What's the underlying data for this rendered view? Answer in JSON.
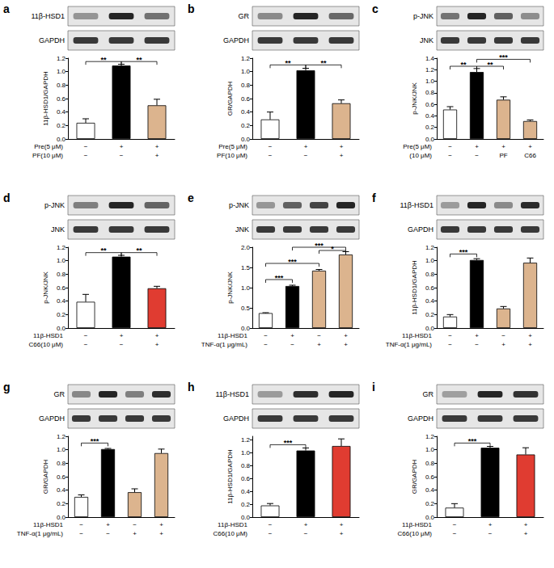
{
  "chart_data": [
    {
      "type": "bar",
      "panel": "a",
      "blots": [
        "11β-HSD1",
        "GAPDH"
      ],
      "ylabel": "11β-HSD1/GAPDH",
      "ylim": [
        0,
        1.2
      ],
      "yticks": [
        {
          "value": 0,
          "label": "0.0"
        },
        0.2,
        0.4,
        0.6,
        0.8,
        {
          "value": 1,
          "label": "1.0"
        },
        1.2
      ],
      "values": [
        0.24,
        1.09,
        0.5
      ],
      "errors": [
        0.06,
        0.02,
        0.09
      ],
      "colors": [
        "#ffffff",
        "#000000",
        "#dcb48e"
      ],
      "conditions": [
        {
          "label": "Pre(5 μM)",
          "signs": [
            "−",
            "+",
            "+"
          ]
        },
        {
          "label": "PF(10 μM)",
          "signs": [
            "−",
            "−",
            "+"
          ]
        }
      ],
      "brackets": [
        {
          "from": 0,
          "to": 1,
          "y": 1.15,
          "label": "**"
        },
        {
          "from": 1,
          "to": 2,
          "y": 1.15,
          "label": "**"
        }
      ]
    },
    {
      "type": "bar",
      "panel": "b",
      "blots": [
        "GR",
        "GAPDH"
      ],
      "ylabel": "GR/GAPDH",
      "ylim": [
        0,
        1.2
      ],
      "yticks": [
        {
          "value": 0,
          "label": "0.0"
        },
        0.2,
        0.4,
        0.6,
        0.8,
        {
          "value": 1,
          "label": "1.0"
        },
        1.2
      ],
      "values": [
        0.29,
        1.02,
        0.53
      ],
      "errors": [
        0.11,
        0.03,
        0.05
      ],
      "colors": [
        "#ffffff",
        "#000000",
        "#dcb48e"
      ],
      "conditions": [
        {
          "label": "Pre(5 μM)",
          "signs": [
            "−",
            "+",
            "+"
          ]
        },
        {
          "label": "PF(10 μM)",
          "signs": [
            "−",
            "−",
            "+"
          ]
        }
      ],
      "brackets": [
        {
          "from": 0,
          "to": 1,
          "y": 1.1,
          "label": "**"
        },
        {
          "from": 1,
          "to": 2,
          "y": 1.1,
          "label": "**"
        }
      ]
    },
    {
      "type": "bar",
      "panel": "c",
      "blots": [
        "p-JNK",
        "JNK"
      ],
      "ylabel": "p-JNK/JNK",
      "ylim": [
        0,
        1.4
      ],
      "yticks": [
        {
          "value": 0,
          "label": "0.0"
        },
        0.2,
        0.4,
        0.6,
        0.8,
        {
          "value": 1,
          "label": "1.0"
        },
        1.2,
        1.4
      ],
      "values": [
        0.51,
        1.16,
        0.68,
        0.31
      ],
      "errors": [
        0.05,
        0.06,
        0.05,
        0.02
      ],
      "colors": [
        "#ffffff",
        "#000000",
        "#dcb48e",
        "#dcb48e"
      ],
      "conditions": [
        {
          "label": "Pre(5 μM)",
          "signs": [
            "−",
            "+",
            "+",
            "+"
          ]
        },
        {
          "label": "(10 μM)",
          "signs": [
            "−",
            "−",
            "PF",
            "C66"
          ]
        }
      ],
      "brackets": [
        {
          "from": 0,
          "to": 1,
          "y": 1.26,
          "label": "**"
        },
        {
          "from": 1,
          "to": 2,
          "y": 1.26,
          "label": "**"
        },
        {
          "from": 1,
          "to": 3,
          "y": 1.38,
          "label": "***"
        }
      ]
    },
    {
      "type": "bar",
      "panel": "d",
      "blots": [
        "p-JNK",
        "JNK"
      ],
      "ylabel": "p-JNK/JNK",
      "ylim": [
        0,
        1.2
      ],
      "yticks": [
        {
          "value": 0,
          "label": "0.0"
        },
        0.2,
        0.4,
        0.6,
        0.8,
        {
          "value": 1,
          "label": "1.0"
        },
        1.2
      ],
      "values": [
        0.39,
        1.06,
        0.59
      ],
      "errors": [
        0.11,
        0.02,
        0.03
      ],
      "colors": [
        "#ffffff",
        "#000000",
        "#e03c31"
      ],
      "conditions": [
        {
          "label": "11β-HSD1",
          "signs": [
            "−",
            "+",
            "+"
          ]
        },
        {
          "label": "C66(10 μM)",
          "signs": [
            "−",
            "−",
            "+"
          ]
        }
      ],
      "brackets": [
        {
          "from": 0,
          "to": 1,
          "y": 1.12,
          "label": "**"
        },
        {
          "from": 1,
          "to": 2,
          "y": 1.12,
          "label": "**"
        }
      ]
    },
    {
      "type": "bar",
      "panel": "e",
      "blots": [
        "p-JNK",
        "JNK"
      ],
      "ylabel": "p-JNK/JNK",
      "ylim": [
        0,
        2
      ],
      "yticks": [
        {
          "value": 0,
          "label": "0.0"
        },
        0.5,
        {
          "value": 1,
          "label": "1.0"
        },
        1.5,
        {
          "value": 2,
          "label": "2.0"
        }
      ],
      "values": [
        0.37,
        1.04,
        1.42,
        1.82
      ],
      "errors": [
        0.01,
        0.02,
        0.03,
        0.07
      ],
      "colors": [
        "#ffffff",
        "#000000",
        "#dcb48e",
        "#dcb48e"
      ],
      "conditions": [
        {
          "label": "11β-HSD1",
          "signs": [
            "−",
            "+",
            "−",
            "+"
          ]
        },
        {
          "label": "TNF-α(1 μg/mL)",
          "signs": [
            "−",
            "−",
            "+",
            "+"
          ]
        }
      ],
      "brackets": [
        {
          "from": 0,
          "to": 1,
          "y": 1.2,
          "label": "***"
        },
        {
          "from": 0,
          "to": 2,
          "y": 1.6,
          "label": "***"
        },
        {
          "from": 2,
          "to": 3,
          "y": 1.92,
          "label": "*"
        },
        {
          "from": 1,
          "to": 3,
          "y": 2,
          "label": "***"
        }
      ]
    },
    {
      "type": "bar",
      "panel": "f",
      "blots": [
        "11β-HSD1",
        "GAPDH"
      ],
      "ylabel": "11β-HSD1/GAPDH",
      "ylim": [
        0,
        1.2
      ],
      "yticks": [
        {
          "value": 0,
          "label": "0.0"
        },
        0.2,
        0.4,
        0.6,
        0.8,
        {
          "value": 1,
          "label": "1.0"
        },
        1.2
      ],
      "values": [
        0.17,
        1.01,
        0.29,
        0.97
      ],
      "errors": [
        0.03,
        0.02,
        0.03,
        0.07
      ],
      "colors": [
        "#ffffff",
        "#000000",
        "#dcb48e",
        "#dcb48e"
      ],
      "conditions": [
        {
          "label": "11β-HSD1",
          "signs": [
            "−",
            "+",
            "−",
            "+"
          ]
        },
        {
          "label": "TNF-α(1 μg/mL)",
          "signs": [
            "−",
            "−",
            "+",
            "+"
          ]
        }
      ],
      "brackets": [
        {
          "from": 0,
          "to": 1,
          "y": 1.1,
          "label": "***"
        }
      ]
    },
    {
      "type": "bar",
      "panel": "g",
      "blots": [
        "GR",
        "GAPDH"
      ],
      "ylabel": "GR/GAPDH",
      "ylim": [
        0,
        1.2
      ],
      "yticks": [
        {
          "value": 0,
          "label": "0.0"
        },
        0.2,
        0.4,
        0.6,
        0.8,
        {
          "value": 1,
          "label": "1.0"
        },
        1.2
      ],
      "values": [
        0.3,
        1.01,
        0.37,
        0.95
      ],
      "errors": [
        0.03,
        0.01,
        0.05,
        0.06
      ],
      "colors": [
        "#ffffff",
        "#000000",
        "#dcb48e",
        "#dcb48e"
      ],
      "conditions": [
        {
          "label": "11β-HSD1",
          "signs": [
            "−",
            "+",
            "−",
            "+"
          ]
        },
        {
          "label": "TNF-α(1 μg/mL)",
          "signs": [
            "−",
            "−",
            "+",
            "+"
          ]
        }
      ],
      "brackets": [
        {
          "from": 0,
          "to": 1,
          "y": 1.1,
          "label": "***"
        }
      ]
    },
    {
      "type": "bar",
      "panel": "h",
      "blots": [
        "11β-HSD1",
        "GAPDH"
      ],
      "ylabel": "11β-HSD1/GAPDH",
      "ylim": [
        0,
        1.25
      ],
      "yticks": [
        {
          "value": 0,
          "label": "0.0"
        },
        0.2,
        0.4,
        0.6,
        0.8,
        {
          "value": 1,
          "label": "1.0"
        },
        1.2
      ],
      "values": [
        0.18,
        1.03,
        1.1
      ],
      "errors": [
        0.03,
        0.04,
        0.11
      ],
      "colors": [
        "#ffffff",
        "#000000",
        "#e03c31"
      ],
      "conditions": [
        {
          "label": "11β-HSD1",
          "signs": [
            "−",
            "+",
            "+"
          ]
        },
        {
          "label": "C66(10 μM)",
          "signs": [
            "−",
            "−",
            "+"
          ]
        }
      ],
      "brackets": [
        {
          "from": 0,
          "to": 1,
          "y": 1.12,
          "label": "***"
        }
      ]
    },
    {
      "type": "bar",
      "panel": "i",
      "blots": [
        "GR",
        "GAPDH"
      ],
      "ylabel": "GR/GAPDH",
      "ylim": [
        0,
        1.2
      ],
      "yticks": [
        {
          "value": 0,
          "label": "0.0"
        },
        0.2,
        0.4,
        0.6,
        0.8,
        {
          "value": 1,
          "label": "1.0"
        },
        1.2
      ],
      "values": [
        0.14,
        1.03,
        0.93
      ],
      "errors": [
        0.06,
        0.02,
        0.1
      ],
      "colors": [
        "#ffffff",
        "#000000",
        "#e03c31"
      ],
      "conditions": [
        {
          "label": "11β-HSD1",
          "signs": [
            "−",
            "+",
            "+"
          ]
        },
        {
          "label": "C66(10 μM)",
          "signs": [
            "−",
            "−",
            "+"
          ]
        }
      ],
      "brackets": [
        {
          "from": 0,
          "to": 1,
          "y": 1.1,
          "label": "***"
        }
      ]
    }
  ]
}
